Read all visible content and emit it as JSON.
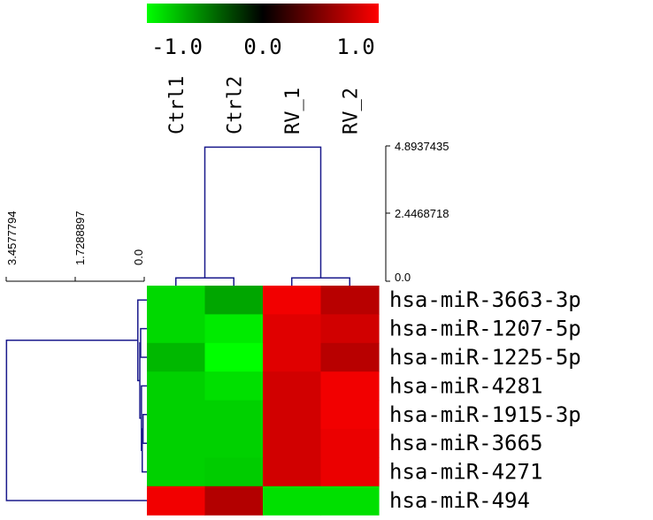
{
  "chart_data": {
    "type": "heatmap",
    "title": "",
    "xlabel": "",
    "ylabel": "",
    "columns": [
      "Ctrl1",
      "Ctrl2",
      "RV_1",
      "RV_2"
    ],
    "rows": [
      "hsa-miR-3663-3p",
      "hsa-miR-1207-5p",
      "hsa-miR-1225-5p",
      "hsa-miR-4281",
      "hsa-miR-1915-3p",
      "hsa-miR-3665",
      "hsa-miR-4271",
      "hsa-miR-494"
    ],
    "values": [
      [
        -0.85,
        -0.65,
        0.95,
        0.72
      ],
      [
        -0.85,
        -0.92,
        0.88,
        0.82
      ],
      [
        -0.72,
        -1.0,
        0.88,
        0.72
      ],
      [
        -0.82,
        -0.88,
        0.82,
        0.95
      ],
      [
        -0.82,
        -0.82,
        0.82,
        0.95
      ],
      [
        -0.82,
        -0.82,
        0.82,
        0.92
      ],
      [
        -0.82,
        -0.8,
        0.82,
        0.92
      ],
      [
        0.95,
        0.7,
        -0.88,
        -0.88
      ]
    ],
    "color_scale": {
      "min": -1.0,
      "max": 1.0,
      "colors": [
        "#00ff00",
        "#000000",
        "#ff0000"
      ],
      "tick_labels": [
        "-1.0",
        "0.0",
        "1.0"
      ]
    },
    "column_dendrogram": {
      "axis_ticks": [
        "4.8937435",
        "2.4468718",
        "0.0"
      ],
      "range": [
        0,
        4.8937435
      ],
      "merges": [
        {
          "left": 0,
          "right": 1,
          "height": 0.12
        },
        {
          "left": 2,
          "right": 3,
          "height": 0.12
        },
        {
          "left": "m0",
          "right": "m1",
          "height": 4.85
        }
      ]
    },
    "row_dendrogram": {
      "axis_ticks": [
        "3.4577794",
        "1.7288897",
        "0.0"
      ],
      "range": [
        0,
        3.4577794
      ],
      "merges": [
        {
          "left": 4,
          "right": 5,
          "height": 0.03
        },
        {
          "left": "m0",
          "right": 6,
          "height": 0.05
        },
        {
          "left": "m1",
          "right": 3,
          "height": 0.07
        },
        {
          "left": 1,
          "right": 2,
          "height": 0.09
        },
        {
          "left": "m2",
          "right": "m3",
          "height": 0.11
        },
        {
          "left": "m4",
          "right": 0,
          "height": 0.16
        },
        {
          "left": "m5",
          "right": 7,
          "height": 3.45
        }
      ]
    },
    "dendrogram_color": "#1a1a8c"
  }
}
